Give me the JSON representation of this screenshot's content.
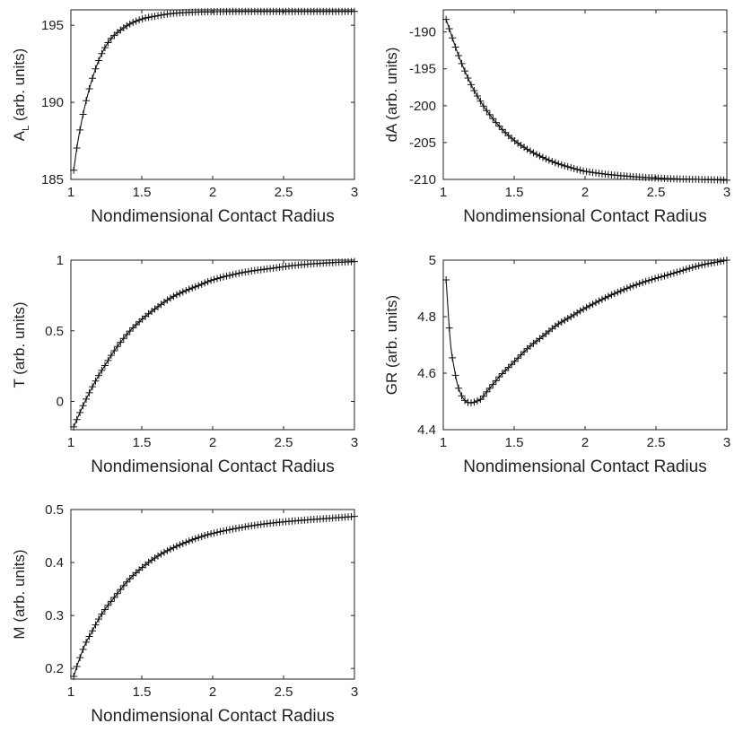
{
  "chart_data": [
    {
      "id": "al",
      "type": "line",
      "xlabel": "Nondimensional Contact Radius",
      "ylabel": {
        "main": "A",
        "sub": "L",
        "rest": " (arb. units)"
      },
      "xlim": [
        1,
        3
      ],
      "ylim": [
        185,
        196
      ],
      "xticks": [
        1,
        1.5,
        2,
        2.5,
        3
      ],
      "xtick_labels": [
        "1",
        "1.5",
        "2",
        "2.5",
        "3"
      ],
      "yticks": [
        185,
        190,
        195
      ],
      "ytick_labels": [
        "185",
        "190",
        "195"
      ],
      "marker": "+",
      "series": [
        {
          "x": [
            1.02,
            1.05,
            1.1,
            1.15,
            1.2,
            1.25,
            1.3,
            1.4,
            1.5,
            1.6,
            1.7,
            1.8,
            1.9,
            2.0,
            2.2,
            2.4,
            2.6,
            2.8,
            3.0
          ],
          "y": [
            185.6,
            187.5,
            189.8,
            191.5,
            192.8,
            193.7,
            194.3,
            195.0,
            195.4,
            195.6,
            195.75,
            195.82,
            195.86,
            195.88,
            195.9,
            195.9,
            195.9,
            195.9,
            195.9
          ]
        }
      ]
    },
    {
      "id": "da",
      "type": "line",
      "xlabel": "Nondimensional Contact Radius",
      "ylabel": {
        "main": "dA",
        "sub": "",
        "rest": " (arb. units)"
      },
      "xlim": [
        1,
        3
      ],
      "ylim": [
        -210,
        -187
      ],
      "xticks": [
        1,
        1.5,
        2,
        2.5,
        3
      ],
      "xtick_labels": [
        "1",
        "1.5",
        "2",
        "2.5",
        "3"
      ],
      "yticks": [
        -210,
        -205,
        -200,
        -195,
        -190
      ],
      "ytick_labels": [
        "-210",
        "-205",
        "-200",
        "-195",
        "-190"
      ],
      "marker": "+",
      "series": [
        {
          "x": [
            1.02,
            1.05,
            1.1,
            1.15,
            1.2,
            1.25,
            1.3,
            1.4,
            1.5,
            1.6,
            1.7,
            1.8,
            1.9,
            2.0,
            2.2,
            2.4,
            2.6,
            2.8,
            3.0
          ],
          "y": [
            -188.3,
            -190.0,
            -192.8,
            -195.2,
            -197.3,
            -199.0,
            -200.5,
            -202.9,
            -204.7,
            -206.0,
            -207.0,
            -207.8,
            -208.4,
            -208.9,
            -209.4,
            -209.7,
            -209.9,
            -210.0,
            -210.1
          ]
        }
      ]
    },
    {
      "id": "t",
      "type": "line",
      "xlabel": "Nondimensional Contact Radius",
      "ylabel": {
        "main": "T",
        "sub": "",
        "rest": " (arb. units)"
      },
      "xlim": [
        1,
        3
      ],
      "ylim": [
        -0.2,
        1
      ],
      "xticks": [
        1,
        1.5,
        2,
        2.5,
        3
      ],
      "xtick_labels": [
        "1",
        "1.5",
        "2",
        "2.5",
        "3"
      ],
      "yticks": [
        0,
        0.5,
        1
      ],
      "ytick_labels": [
        "0",
        "0.5",
        "1"
      ],
      "marker": "+",
      "series": [
        {
          "x": [
            1.02,
            1.05,
            1.1,
            1.15,
            1.2,
            1.25,
            1.3,
            1.4,
            1.5,
            1.6,
            1.7,
            1.8,
            1.9,
            2.0,
            2.2,
            2.4,
            2.6,
            2.8,
            3.0
          ],
          "y": [
            -0.18,
            -0.11,
            0.0,
            0.1,
            0.19,
            0.27,
            0.35,
            0.48,
            0.58,
            0.66,
            0.73,
            0.78,
            0.82,
            0.86,
            0.91,
            0.94,
            0.965,
            0.98,
            0.99
          ]
        }
      ]
    },
    {
      "id": "gr",
      "type": "line",
      "xlabel": "Nondimensional Contact Radius",
      "ylabel": {
        "main": "GR",
        "sub": "",
        "rest": " (arb. units)"
      },
      "xlim": [
        1,
        3
      ],
      "ylim": [
        4.4,
        5
      ],
      "xticks": [
        1,
        1.5,
        2,
        2.5,
        3
      ],
      "xtick_labels": [
        "1",
        "1.5",
        "2",
        "2.5",
        "3"
      ],
      "yticks": [
        4.4,
        4.6,
        4.8,
        5
      ],
      "ytick_labels": [
        "4.4",
        "4.6",
        "4.8",
        "5"
      ],
      "marker": "+",
      "series": [
        {
          "x": [
            1.02,
            1.05,
            1.08,
            1.1,
            1.13,
            1.16,
            1.2,
            1.23,
            1.27,
            1.3,
            1.35,
            1.4,
            1.5,
            1.6,
            1.7,
            1.8,
            1.9,
            2.0,
            2.2,
            2.4,
            2.6,
            2.8,
            3.0
          ],
          "y": [
            4.93,
            4.71,
            4.61,
            4.56,
            4.52,
            4.5,
            4.495,
            4.5,
            4.51,
            4.53,
            4.56,
            4.59,
            4.64,
            4.69,
            4.73,
            4.77,
            4.8,
            4.83,
            4.88,
            4.92,
            4.95,
            4.98,
            5.0
          ]
        }
      ]
    },
    {
      "id": "m",
      "type": "line",
      "xlabel": "Nondimensional Contact Radius",
      "ylabel": {
        "main": "M",
        "sub": "",
        "rest": " (arb. units)"
      },
      "xlim": [
        1,
        3
      ],
      "ylim": [
        0.18,
        0.5
      ],
      "xticks": [
        1,
        1.5,
        2,
        2.5,
        3
      ],
      "xtick_labels": [
        "1",
        "1.5",
        "2",
        "2.5",
        "3"
      ],
      "yticks": [
        0.2,
        0.3,
        0.4,
        0.5
      ],
      "ytick_labels": [
        "0.2",
        "0.3",
        "0.4",
        "0.5"
      ],
      "marker": "+",
      "series": [
        {
          "x": [
            1.02,
            1.05,
            1.1,
            1.15,
            1.2,
            1.25,
            1.3,
            1.4,
            1.5,
            1.6,
            1.7,
            1.8,
            1.9,
            2.0,
            2.2,
            2.4,
            2.6,
            2.8,
            3.0
          ],
          "y": [
            0.185,
            0.21,
            0.245,
            0.27,
            0.295,
            0.315,
            0.332,
            0.365,
            0.39,
            0.41,
            0.425,
            0.437,
            0.447,
            0.455,
            0.466,
            0.474,
            0.479,
            0.483,
            0.487
          ]
        }
      ]
    }
  ]
}
